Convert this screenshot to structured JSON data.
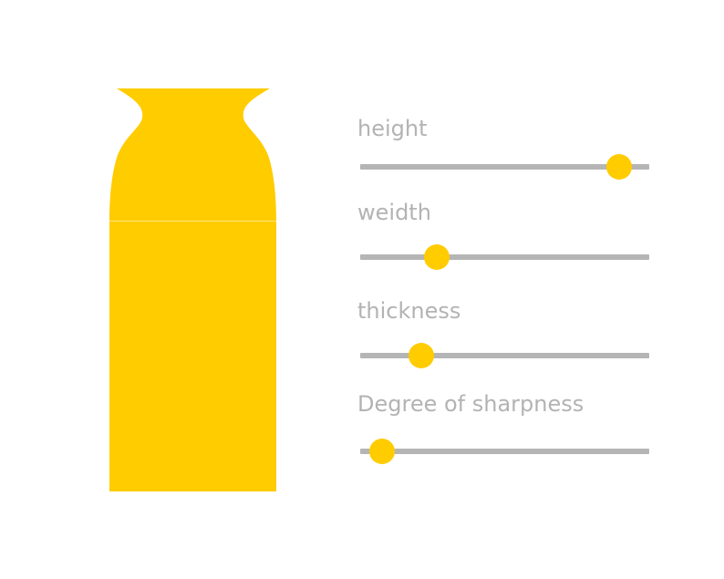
{
  "colors": {
    "vase": "#ffcc00",
    "track": "#b5b5b5",
    "thumb": "#ffcc00",
    "label": "#b3b3b3"
  },
  "sliders": [
    {
      "id": "height",
      "label": "height",
      "value": 0.895
    },
    {
      "id": "width",
      "label": "weidth",
      "value": 0.265
    },
    {
      "id": "thickness",
      "label": "thickness",
      "value": 0.21
    },
    {
      "id": "sharpness",
      "label": "Degree of sharpness",
      "value": 0.075
    }
  ]
}
